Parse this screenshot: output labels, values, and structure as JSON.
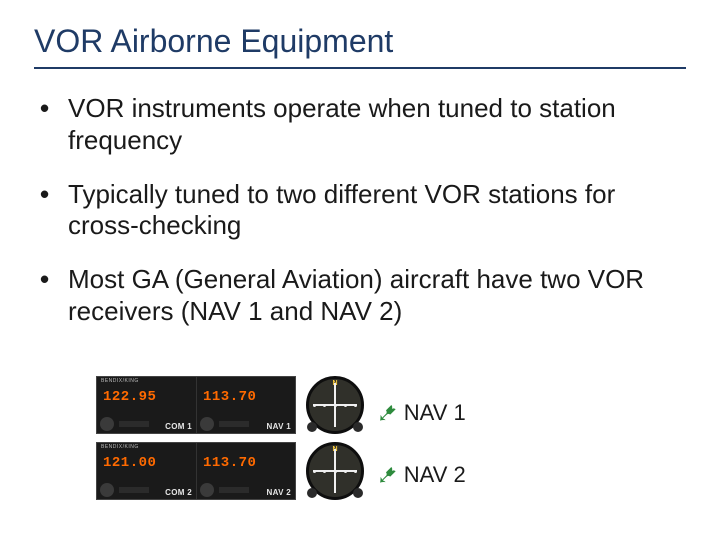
{
  "slide": {
    "title": "VOR Airborne Equipment",
    "title_color": "#1f3b66",
    "underline_color": "#1f3b66",
    "body_color": "#1a1a1a",
    "bullet_color": "#1a1a1a",
    "bullets": [
      "VOR instruments operate when tuned to station frequency",
      "Typically tuned to two different VOR stations for cross-checking",
      "Most GA (General Aviation) aircraft have two VOR receivers (NAV 1 and NAV 2)"
    ],
    "bullet_fontsize": 26,
    "title_fontsize": 32
  },
  "radios": {
    "panel_bg": "#1a1a1a",
    "brand_text": "BENDIX/KING",
    "brand_color": "#bbbbbb",
    "freq_color": "#ff6a00",
    "label_color": "#e6e6e6",
    "knob_color": "#3a3a3a",
    "bar_color": "#2b2b2b",
    "units": [
      {
        "com_freq": "122.95",
        "nav_freq": "113.70",
        "com_label": "COM 1",
        "nav_label": "NAV 1"
      },
      {
        "com_freq": "121.00",
        "nav_freq": "113.70",
        "com_label": "COM 2",
        "nav_label": "NAV 2"
      }
    ]
  },
  "gauges": {
    "face_bg": "#30302a",
    "bezel": "#0e0e0e",
    "tick_color": "#f0f0f0",
    "needle_v_color": "#00c800",
    "hdg_color": "#ffd040",
    "dot_color": "#f0f0f0",
    "knob_color": "#2a2a2a",
    "heading_mark": "N"
  },
  "arrows": {
    "color": "#2e8b3d",
    "glyph": "➷"
  },
  "labels": {
    "items": [
      "NAV 1",
      "NAV 2"
    ],
    "fontsize": 22,
    "color": "#1a1a1a"
  }
}
